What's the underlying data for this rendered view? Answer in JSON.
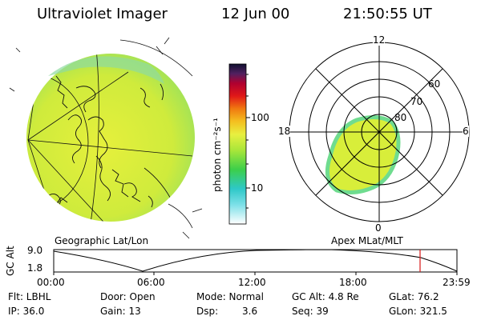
{
  "header": {
    "title": "Ultraviolet Imager",
    "date": "12 Jun 00",
    "time": "21:50:55 UT"
  },
  "colorbar": {
    "unit_label": "photon cm⁻²s⁻¹",
    "tick_high": "100",
    "tick_low": "10"
  },
  "polar_plot": {
    "lat_labels": [
      "80",
      "70",
      "60"
    ],
    "mlt_labels": {
      "top": "12",
      "right": "6",
      "bottom": "0",
      "left": "18"
    }
  },
  "panel_labels": {
    "left": "Geographic Lat/Lon",
    "right": "Apex MLat/MLT"
  },
  "altitude_plot": {
    "ylabel": "GC Alt",
    "ytick_high": "9.0",
    "ytick_low": "1.8",
    "xticks": [
      "00:00",
      "06:00",
      "12:00",
      "18:00",
      "23:59"
    ]
  },
  "info": {
    "flt": "Flt: LBHL",
    "ip": "IP: 36.0",
    "door": "Door: Open",
    "gain": "Gain: 13",
    "mode": "Mode: Normal",
    "dsp_label": "Dsp:",
    "dsp_value": "3.6",
    "gc_alt": "GC Alt: 4.8 Re",
    "seq": "Seq: 39",
    "glat": "GLat: 76.2",
    "glon": "GLon: 321.5"
  },
  "colors": {
    "auroral_fill": "#d8ee3a",
    "auroral_edge": "#6fdc8f",
    "marker_line": "#d81818"
  }
}
